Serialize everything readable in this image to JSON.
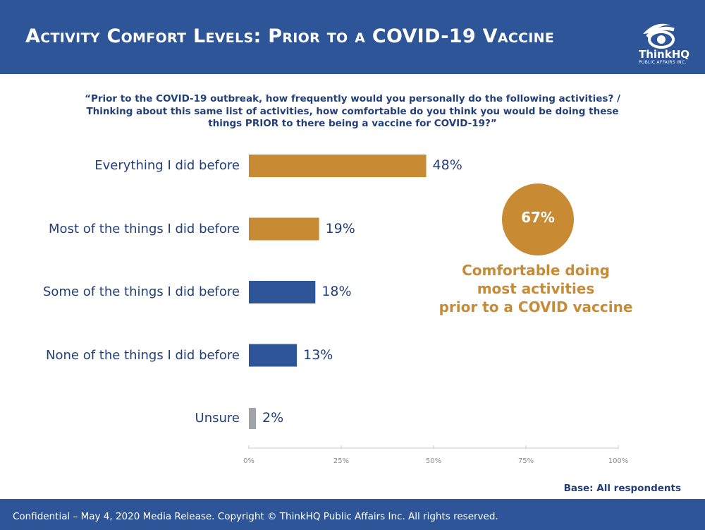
{
  "header": {
    "title": "Activity Comfort Levels: Prior to a COVID-19 Vaccine",
    "logo_name": "ThinkHQ",
    "logo_sub": "PUBLIC AFFAIRS INC.",
    "bg_color": "#2e5597"
  },
  "question": {
    "line1": "“Prior to the COVID-19 outbreak, how frequently would you personally do the following activities? /",
    "line2": "Thinking about this same list of activities, how comfortable do you think you would be doing these",
    "line3": "things PRIOR to there being a vaccine for COVID-19?”"
  },
  "chart_data": {
    "type": "bar",
    "orientation": "horizontal",
    "categories": [
      "Everything I did before",
      "Most of the things I did before",
      "Some of the things I did before",
      "None of the things I did before",
      "Unsure"
    ],
    "values": [
      48,
      19,
      18,
      13,
      2
    ],
    "value_labels": [
      "48%",
      "19%",
      "18%",
      "13%",
      "2%"
    ],
    "bar_colors": [
      "#c88a33",
      "#c88a33",
      "#2e5597",
      "#2e5597",
      "#a0a4a8"
    ],
    "xlim": [
      0,
      100
    ],
    "x_ticks": [
      "0%",
      "25%",
      "50%",
      "75%",
      "100%"
    ],
    "grid": false
  },
  "callout": {
    "value": "67%",
    "line1": "Comfortable doing",
    "line2": "most activities",
    "line3": "prior to a COVID vaccine",
    "color": "#c88a33"
  },
  "base_note": "Base: All respondents",
  "footer": {
    "text": "Confidential – May 4, 2020 Media Release. Copyright © ThinkHQ Public Affairs Inc. All rights reserved."
  }
}
